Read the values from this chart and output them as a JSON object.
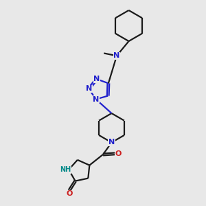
{
  "bg_color": "#e8e8e8",
  "bond_color": "#1a1a1a",
  "N_color": "#2020cc",
  "O_color": "#cc2020",
  "NH_color": "#008888",
  "font_size": 8,
  "bond_width": 1.6,
  "dbo": 0.055,
  "xlim": [
    0,
    10
  ],
  "ylim": [
    0,
    12
  ]
}
